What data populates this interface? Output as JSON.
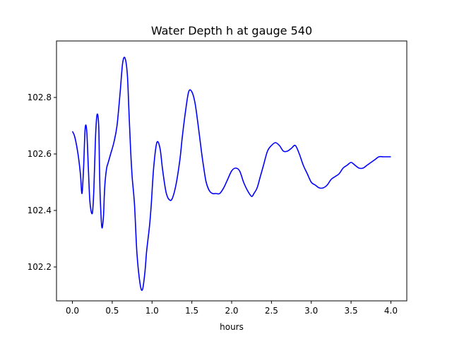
{
  "chart_data": {
    "type": "line",
    "title": "Water Depth h at gauge 540",
    "xlabel": "hours",
    "ylabel": "",
    "xlim": [
      -0.2,
      4.2
    ],
    "ylim": [
      102.08,
      103.0
    ],
    "x_ticks": [
      0.0,
      0.5,
      1.0,
      1.5,
      2.0,
      2.5,
      3.0,
      3.5,
      4.0
    ],
    "x_tick_labels": [
      "0.0",
      "0.5",
      "1.0",
      "1.5",
      "2.0",
      "2.5",
      "3.0",
      "3.5",
      "4.0"
    ],
    "y_ticks": [
      102.2,
      102.4,
      102.6,
      102.8
    ],
    "y_tick_labels": [
      "102.2",
      "102.4",
      "102.6",
      "102.8"
    ],
    "grid": false,
    "series": [
      {
        "name": "",
        "color": "#0000ff",
        "x": [
          0.0,
          0.03,
          0.07,
          0.1,
          0.12,
          0.14,
          0.16,
          0.18,
          0.2,
          0.22,
          0.25,
          0.27,
          0.29,
          0.31,
          0.33,
          0.34,
          0.35,
          0.37,
          0.39,
          0.4,
          0.41,
          0.43,
          0.45,
          0.48,
          0.52,
          0.56,
          0.6,
          0.63,
          0.66,
          0.69,
          0.71,
          0.73,
          0.75,
          0.78,
          0.81,
          0.85,
          0.88,
          0.91,
          0.93,
          0.95,
          0.97,
          0.99,
          1.02,
          1.06,
          1.1,
          1.13,
          1.16,
          1.18,
          1.21,
          1.25,
          1.3,
          1.35,
          1.38,
          1.42,
          1.46,
          1.5,
          1.54,
          1.58,
          1.62,
          1.65,
          1.68,
          1.72,
          1.76,
          1.8,
          1.85,
          1.9,
          1.95,
          2.0,
          2.05,
          2.1,
          2.15,
          2.2,
          2.25,
          2.28,
          2.32,
          2.36,
          2.4,
          2.45,
          2.5,
          2.55,
          2.6,
          2.65,
          2.7,
          2.75,
          2.8,
          2.85,
          2.9,
          2.95,
          3.0,
          3.05,
          3.1,
          3.15,
          3.2,
          3.25,
          3.3,
          3.35,
          3.4,
          3.45,
          3.5,
          3.55,
          3.6,
          3.65,
          3.7,
          3.75,
          3.8,
          3.85,
          3.9,
          3.95,
          4.0
        ],
        "y": [
          102.68,
          102.66,
          102.6,
          102.53,
          102.46,
          102.55,
          102.69,
          102.68,
          102.55,
          102.43,
          102.39,
          102.48,
          102.66,
          102.74,
          102.7,
          102.55,
          102.44,
          102.34,
          102.38,
          102.45,
          102.5,
          102.55,
          102.57,
          102.6,
          102.64,
          102.7,
          102.82,
          102.92,
          102.94,
          102.88,
          102.75,
          102.62,
          102.52,
          102.42,
          102.25,
          102.14,
          102.12,
          102.18,
          102.25,
          102.3,
          102.35,
          102.42,
          102.55,
          102.64,
          102.62,
          102.55,
          102.49,
          102.46,
          102.44,
          102.44,
          102.49,
          102.58,
          102.66,
          102.75,
          102.82,
          102.82,
          102.78,
          102.7,
          102.61,
          102.55,
          102.5,
          102.47,
          102.46,
          102.46,
          102.46,
          102.48,
          102.51,
          102.54,
          102.55,
          102.54,
          102.5,
          102.47,
          102.45,
          102.46,
          102.48,
          102.52,
          102.56,
          102.61,
          102.63,
          102.64,
          102.63,
          102.61,
          102.61,
          102.62,
          102.63,
          102.6,
          102.56,
          102.53,
          102.5,
          102.49,
          102.48,
          102.48,
          102.49,
          102.51,
          102.52,
          102.53,
          102.55,
          102.56,
          102.57,
          102.56,
          102.55,
          102.55,
          102.56,
          102.57,
          102.58,
          102.59,
          102.59,
          102.59,
          102.59
        ]
      }
    ]
  }
}
